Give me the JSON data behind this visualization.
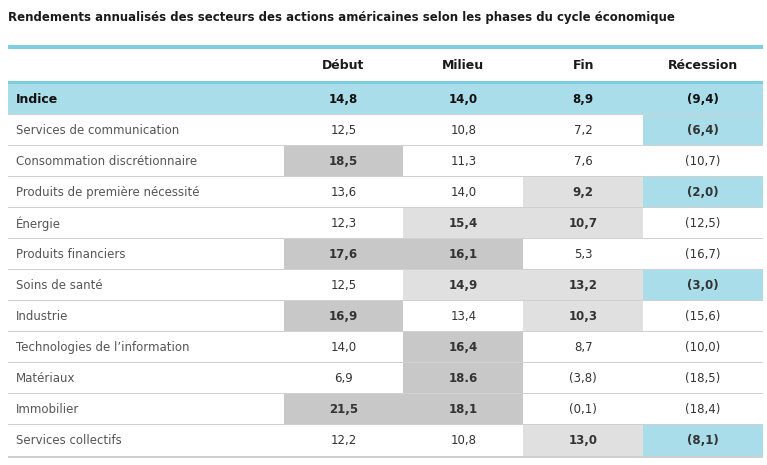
{
  "title": "Rendements annualisés des secteurs des actions américaines selon les phases du cycle économique",
  "col_headers": [
    "Début",
    "Milieu",
    "Fin",
    "Récession"
  ],
  "rows": [
    {
      "label": "Indice",
      "vals": [
        "14,8",
        "14,0",
        "8,9",
        "(9,4)"
      ],
      "indice": true
    },
    {
      "label": "Services de communication",
      "vals": [
        "12,5",
        "10,8",
        "7,2",
        "(6,4)"
      ],
      "indice": false
    },
    {
      "label": "Consommation discrétionnaire",
      "vals": [
        "18,5",
        "11,3",
        "7,6",
        "(10,7)"
      ],
      "indice": false
    },
    {
      "label": "Produits de première nécessité",
      "vals": [
        "13,6",
        "14,0",
        "9,2",
        "(2,0)"
      ],
      "indice": false
    },
    {
      "label": "Énergie",
      "vals": [
        "12,3",
        "15,4",
        "10,7",
        "(12,5)"
      ],
      "indice": false
    },
    {
      "label": "Produits financiers",
      "vals": [
        "17,6",
        "16,1",
        "5,3",
        "(16,7)"
      ],
      "indice": false
    },
    {
      "label": "Soins de santé",
      "vals": [
        "12,5",
        "14,9",
        "13,2",
        "(3,0)"
      ],
      "indice": false
    },
    {
      "label": "Industrie",
      "vals": [
        "16,9",
        "13,4",
        "10,3",
        "(15,6)"
      ],
      "indice": false
    },
    {
      "label": "Technologies de l’information",
      "vals": [
        "14,0",
        "16,4",
        "8,7",
        "(10,0)"
      ],
      "indice": false
    },
    {
      "label": "Matériaux",
      "vals": [
        "6,9",
        "18.6",
        "(3,8)",
        "(18,5)"
      ],
      "indice": false
    },
    {
      "label": "Immobilier",
      "vals": [
        "21,5",
        "18,1",
        "(0,1)",
        "(18,4)"
      ],
      "indice": false
    },
    {
      "label": "Services collectifs",
      "vals": [
        "12,2",
        "10,8",
        "13,0",
        "(8,1)"
      ],
      "indice": false
    }
  ],
  "cell_bg": [
    [
      "cyan",
      "cyan",
      "cyan",
      "cyan"
    ],
    [
      "white",
      "white",
      "white",
      "cyan"
    ],
    [
      "gray",
      "white",
      "white",
      "white"
    ],
    [
      "white",
      "white",
      "lgray",
      "cyan"
    ],
    [
      "white",
      "lgray",
      "lgray",
      "white"
    ],
    [
      "gray",
      "gray",
      "white",
      "white"
    ],
    [
      "white",
      "lgray",
      "lgray",
      "cyan"
    ],
    [
      "gray",
      "white",
      "lgray",
      "white"
    ],
    [
      "white",
      "gray",
      "white",
      "white"
    ],
    [
      "white",
      "gray",
      "white",
      "white"
    ],
    [
      "gray",
      "gray",
      "white",
      "white"
    ],
    [
      "white",
      "white",
      "lgray",
      "cyan"
    ]
  ],
  "cell_bold": [
    [
      true,
      true,
      true,
      true
    ],
    [
      false,
      false,
      false,
      true
    ],
    [
      true,
      false,
      false,
      false
    ],
    [
      false,
      false,
      true,
      true
    ],
    [
      false,
      true,
      true,
      false
    ],
    [
      true,
      true,
      false,
      false
    ],
    [
      false,
      true,
      true,
      true
    ],
    [
      true,
      false,
      true,
      false
    ],
    [
      false,
      true,
      false,
      false
    ],
    [
      false,
      true,
      false,
      false
    ],
    [
      true,
      true,
      false,
      false
    ],
    [
      false,
      false,
      true,
      true
    ]
  ],
  "color_cyan": "#a8dde9",
  "color_gray": "#c8c8c8",
  "color_lgray": "#e0e0e0",
  "color_white": "#ffffff",
  "color_divider": "#d0d0d0",
  "color_top_border": "#7ecde0",
  "color_title": "#1a1a1a",
  "color_header": "#1a1a1a",
  "color_label": "#555555",
  "color_indice_label": "#111111",
  "color_cell": "#333333",
  "fig_w": 7.67,
  "fig_h": 4.65,
  "dpi": 100
}
